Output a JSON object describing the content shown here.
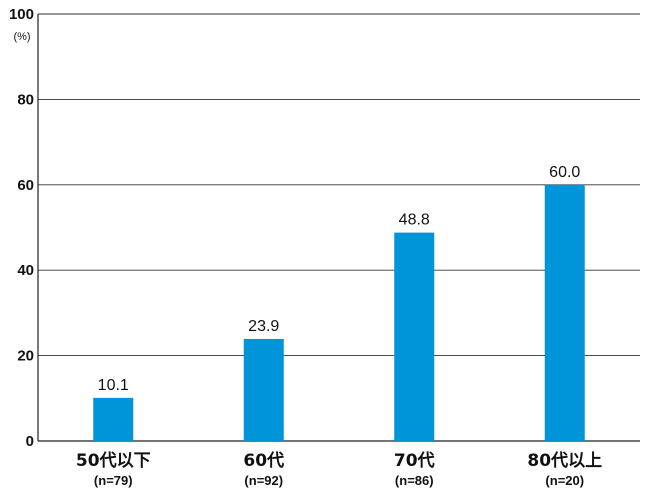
{
  "chart_data": {
    "type": "bar",
    "categories": [
      "50代以下",
      "60代",
      "70代",
      "80代以上"
    ],
    "category_counts": [
      "(n=79)",
      "(n=92)",
      "(n=86)",
      "(n=20)"
    ],
    "values": [
      10.1,
      23.9,
      48.8,
      60.0
    ],
    "value_labels": [
      "10.1",
      "23.9",
      "48.8",
      "60.0"
    ],
    "ylim": [
      0,
      100
    ],
    "yticks": [
      0,
      20,
      40,
      60,
      80,
      100
    ],
    "y_unit": "(%)",
    "grid": true,
    "bar_color": "#0095d9"
  }
}
